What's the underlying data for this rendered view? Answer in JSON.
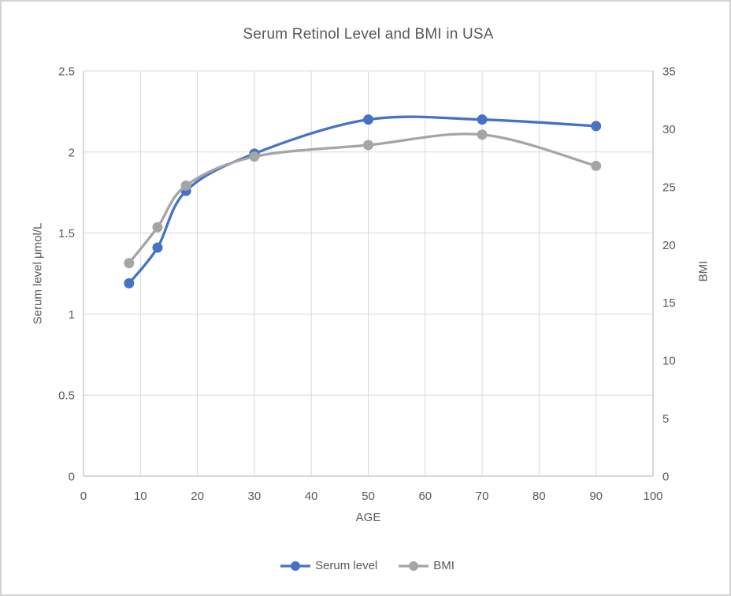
{
  "window": {
    "background_color": "#ffffff",
    "border_color": "#d2d2d2"
  },
  "chart_data": {
    "type": "line",
    "title": "Serum Retinol Level and BMI in USA",
    "x_axis": {
      "label": "AGE",
      "min": 0,
      "max": 100,
      "ticks": [
        0,
        10,
        20,
        30,
        40,
        50,
        60,
        70,
        80,
        90,
        100
      ]
    },
    "y_axis_left": {
      "label": "Serum level μmol/L",
      "min": 0,
      "max": 2.5,
      "ticks": [
        0,
        0.5,
        1,
        1.5,
        2,
        2.5
      ]
    },
    "y_axis_right": {
      "label": "BMI",
      "min": 0,
      "max": 35,
      "ticks": [
        0,
        5,
        10,
        15,
        20,
        25,
        30,
        35
      ]
    },
    "x": [
      8,
      13,
      18,
      30,
      50,
      70,
      90
    ],
    "series": [
      {
        "name": "Serum level",
        "axis": "left",
        "color": "#4472C4",
        "values": [
          1.19,
          1.41,
          1.76,
          1.99,
          2.2,
          2.2,
          2.16
        ],
        "smooth": true,
        "markers": true
      },
      {
        "name": "BMI",
        "axis": "right",
        "color": "#A5A5A5",
        "values": [
          18.4,
          21.5,
          25.1,
          27.6,
          28.6,
          29.5,
          26.8
        ],
        "smooth": true,
        "markers": true
      }
    ],
    "legend": {
      "position": "bottom",
      "entries": [
        "Serum level",
        "BMI"
      ]
    },
    "style": {
      "gridline_color": "#D9D9D9",
      "axis_line_color": "#BFBFBF",
      "text_color": "#595959",
      "line_width": 3.3,
      "marker_radius": 6.5
    },
    "grid": {
      "horizontal": true,
      "vertical": true
    }
  }
}
